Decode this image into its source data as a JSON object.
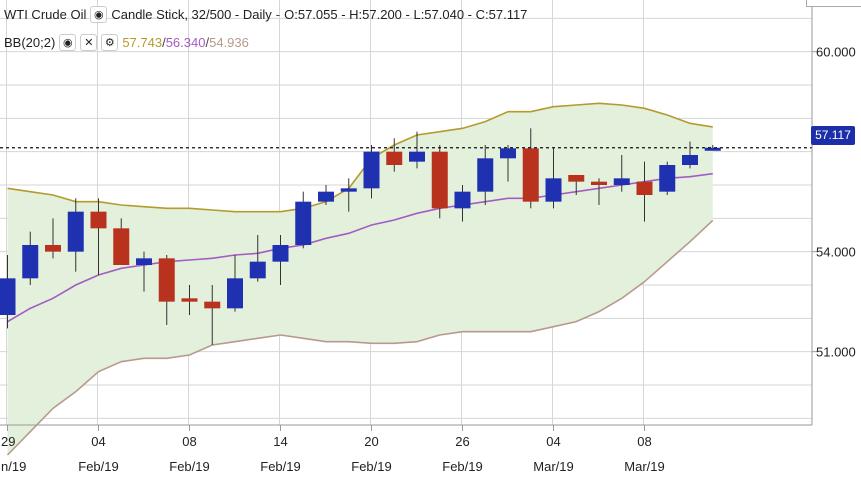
{
  "header": {
    "symbol": "WTI Crude Oil",
    "chart_type": "Candle Stick, 32/500 - Daily",
    "ohlc": "O:57.055 - H:57.200 - L:57.040 - C:57.117",
    "indicator": "BB(20;2)",
    "bb_upper": "57.743",
    "bb_mid": "56.340",
    "bb_lower": "54.936",
    "icons": [
      "eye-icon",
      "close-icon",
      "gear-icon"
    ]
  },
  "last_price_label": "57.117",
  "colors": {
    "up": "#1f30b0",
    "down": "#b8321e",
    "band_fill": "#e3f0dc",
    "upper_band": "#b59a2e",
    "middle_band": "#a45cc4",
    "lower_band": "#b89a8c",
    "grid": "#d6d6d6",
    "price_tag": "#1c2fa8"
  },
  "chart_data": {
    "type": "candlestick",
    "ylim": [
      48.8,
      61.55
    ],
    "y_ticks": [
      "60.000",
      "54.000",
      "51.000"
    ],
    "x_ticks": [
      {
        "day": "29",
        "month": "n/19"
      },
      {
        "day": "04",
        "month": "Feb/19"
      },
      {
        "day": "08",
        "month": "Feb/19"
      },
      {
        "day": "14",
        "month": "Feb/19"
      },
      {
        "day": "20",
        "month": "Feb/19"
      },
      {
        "day": "26",
        "month": "Feb/19"
      },
      {
        "day": "04",
        "month": "Mar/19"
      },
      {
        "day": "08",
        "month": "Mar/19"
      }
    ],
    "candles": [
      {
        "o": 52.1,
        "h": 53.9,
        "l": 51.7,
        "c": 53.2
      },
      {
        "o": 53.2,
        "h": 54.6,
        "l": 53.0,
        "c": 54.2
      },
      {
        "o": 54.2,
        "h": 55.0,
        "l": 53.8,
        "c": 54.0
      },
      {
        "o": 54.0,
        "h": 55.6,
        "l": 53.4,
        "c": 55.2
      },
      {
        "o": 55.2,
        "h": 55.6,
        "l": 53.3,
        "c": 54.7
      },
      {
        "o": 54.7,
        "h": 55.0,
        "l": 53.6,
        "c": 53.6
      },
      {
        "o": 53.6,
        "h": 54.0,
        "l": 52.8,
        "c": 53.8
      },
      {
        "o": 53.8,
        "h": 53.9,
        "l": 51.8,
        "c": 52.5
      },
      {
        "o": 52.6,
        "h": 53.0,
        "l": 52.1,
        "c": 52.5
      },
      {
        "o": 52.5,
        "h": 53.0,
        "l": 51.2,
        "c": 52.3
      },
      {
        "o": 52.3,
        "h": 53.9,
        "l": 52.2,
        "c": 53.2
      },
      {
        "o": 53.2,
        "h": 54.5,
        "l": 53.1,
        "c": 53.7
      },
      {
        "o": 53.7,
        "h": 54.5,
        "l": 53.0,
        "c": 54.2
      },
      {
        "o": 54.2,
        "h": 55.8,
        "l": 54.1,
        "c": 55.5
      },
      {
        "o": 55.5,
        "h": 56.0,
        "l": 55.4,
        "c": 55.8
      },
      {
        "o": 55.8,
        "h": 56.2,
        "l": 55.2,
        "c": 55.9
      },
      {
        "o": 55.9,
        "h": 57.2,
        "l": 55.6,
        "c": 57.0
      },
      {
        "o": 57.0,
        "h": 57.4,
        "l": 56.4,
        "c": 56.6
      },
      {
        "o": 56.7,
        "h": 57.6,
        "l": 56.5,
        "c": 57.0
      },
      {
        "o": 57.0,
        "h": 57.2,
        "l": 55.0,
        "c": 55.3
      },
      {
        "o": 55.3,
        "h": 56.0,
        "l": 54.9,
        "c": 55.8
      },
      {
        "o": 55.8,
        "h": 57.2,
        "l": 55.4,
        "c": 56.8
      },
      {
        "o": 56.8,
        "h": 57.2,
        "l": 56.1,
        "c": 57.1
      },
      {
        "o": 57.1,
        "h": 57.7,
        "l": 55.3,
        "c": 55.5
      },
      {
        "o": 55.5,
        "h": 57.1,
        "l": 55.3,
        "c": 56.2
      },
      {
        "o": 56.3,
        "h": 56.3,
        "l": 55.7,
        "c": 56.1
      },
      {
        "o": 56.1,
        "h": 56.2,
        "l": 55.4,
        "c": 56.0
      },
      {
        "o": 56.0,
        "h": 56.9,
        "l": 55.8,
        "c": 56.2
      },
      {
        "o": 56.1,
        "h": 56.7,
        "l": 54.9,
        "c": 55.7
      },
      {
        "o": 55.8,
        "h": 56.7,
        "l": 55.7,
        "c": 56.6
      },
      {
        "o": 56.6,
        "h": 57.3,
        "l": 56.5,
        "c": 56.9
      },
      {
        "o": 57.055,
        "h": 57.2,
        "l": 57.04,
        "c": 57.117
      }
    ],
    "bollinger": {
      "upper": [
        55.9,
        55.8,
        55.7,
        55.5,
        55.5,
        55.4,
        55.35,
        55.3,
        55.3,
        55.25,
        55.2,
        55.2,
        55.2,
        55.3,
        55.5,
        55.9,
        56.8,
        57.2,
        57.5,
        57.6,
        57.7,
        57.9,
        58.2,
        58.2,
        58.35,
        58.4,
        58.45,
        58.4,
        58.3,
        58.1,
        57.85,
        57.743
      ],
      "middle": [
        51.9,
        52.3,
        52.6,
        53.0,
        53.3,
        53.5,
        53.6,
        53.7,
        53.75,
        53.8,
        53.9,
        53.95,
        54.1,
        54.2,
        54.4,
        54.55,
        54.8,
        54.95,
        55.15,
        55.3,
        55.4,
        55.5,
        55.6,
        55.6,
        55.7,
        55.8,
        55.9,
        56.0,
        56.1,
        56.2,
        56.25,
        56.34
      ],
      "lower": [
        47.9,
        48.6,
        49.3,
        49.8,
        50.4,
        50.7,
        50.8,
        50.8,
        50.9,
        51.2,
        51.3,
        51.4,
        51.5,
        51.4,
        51.3,
        51.3,
        51.25,
        51.25,
        51.3,
        51.5,
        51.6,
        51.6,
        51.6,
        51.6,
        51.75,
        51.9,
        52.2,
        52.6,
        53.1,
        53.7,
        54.3,
        54.936
      ]
    }
  }
}
